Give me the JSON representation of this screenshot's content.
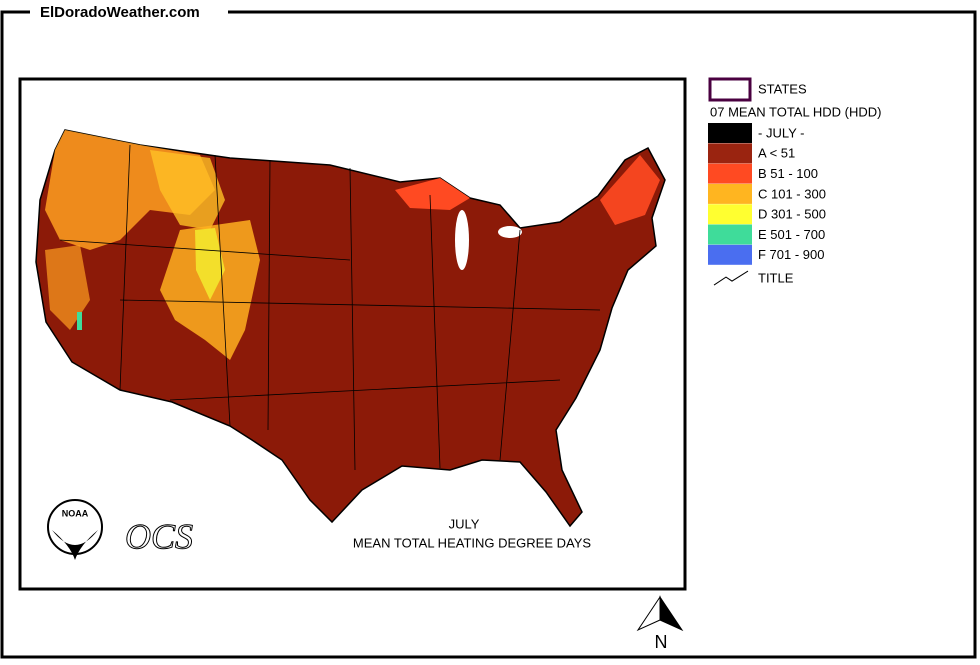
{
  "header": {
    "site": "ElDoradoWeather.com"
  },
  "map": {
    "caption_month": "JULY",
    "caption_title": "MEAN TOTAL HEATING  DEGREE DAYS",
    "logo_text": "NOAA",
    "ocs_text": "OCS",
    "north_label": "N"
  },
  "legend": {
    "states_label": "STATES",
    "title": "07 MEAN TOTAL HDD (HDD)",
    "items": [
      {
        "label": "- JULY -",
        "color": "#000000"
      },
      {
        "label": "A < 51",
        "color": "#9a2410"
      },
      {
        "label": "B 51 -  100",
        "color": "#ff4a22"
      },
      {
        "label": "C 101 -  300",
        "color": "#ffb520"
      },
      {
        "label": "D 301 -  500",
        "color": "#ffff30"
      },
      {
        "label": "E 501 -  700",
        "color": "#3fdc9a"
      },
      {
        "label": "F 701 -  900",
        "color": "#4a6ef0"
      }
    ],
    "title_label": "TITLE"
  }
}
